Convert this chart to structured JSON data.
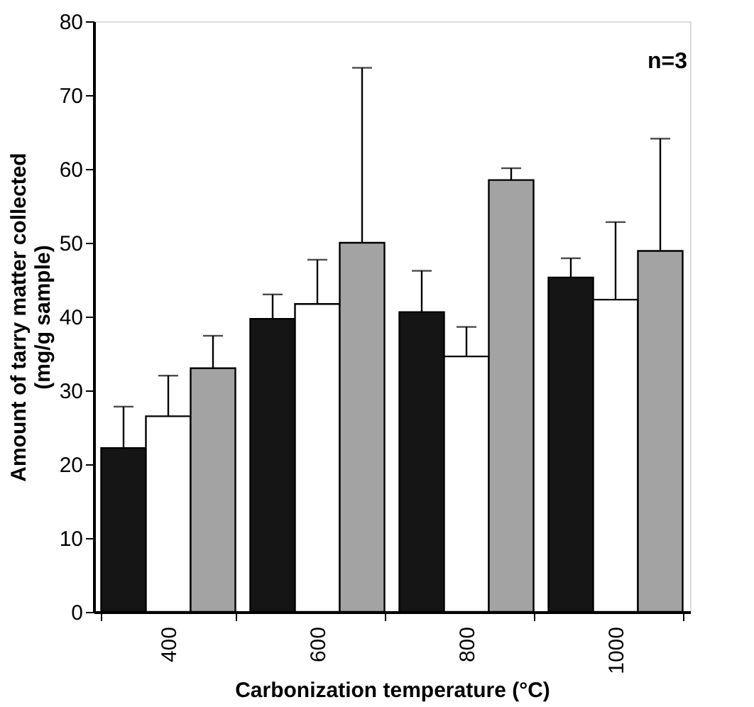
{
  "chart_data": {
    "type": "bar",
    "xlabel": "Carbonization temperature (°C)",
    "ylabel": "Amount of tarry matter collected\n(mg/g sample)",
    "categories": [
      "400",
      "600",
      "800",
      "1000"
    ],
    "series": [
      {
        "color": "#151515",
        "values": [
          22.2,
          39.7,
          40.6,
          45.3
        ],
        "errors": [
          [
            22.2,
            27.8
          ],
          [
            39.7,
            43.0
          ],
          [
            40.6,
            46.2
          ],
          [
            45.3,
            47.9
          ]
        ]
      },
      {
        "color": "#ffffff",
        "values": [
          26.5,
          41.7,
          34.6,
          42.3
        ],
        "errors": [
          [
            26.5,
            32.0
          ],
          [
            41.7,
            47.7
          ],
          [
            34.6,
            38.6
          ],
          [
            42.3,
            52.8
          ]
        ]
      },
      {
        "color": "#a3a3a3",
        "values": [
          33.0,
          50.0,
          58.5,
          48.9
        ],
        "errors": [
          [
            33.0,
            37.4
          ],
          [
            50.0,
            73.7
          ],
          [
            58.5,
            60.1
          ],
          [
            48.9,
            64.1
          ]
        ]
      }
    ],
    "ylim": [
      0,
      80
    ],
    "yticks": [
      0,
      10,
      20,
      30,
      40,
      50,
      60,
      70,
      80
    ],
    "grid": false,
    "legend": false,
    "annotations": [
      "n=3"
    ]
  }
}
